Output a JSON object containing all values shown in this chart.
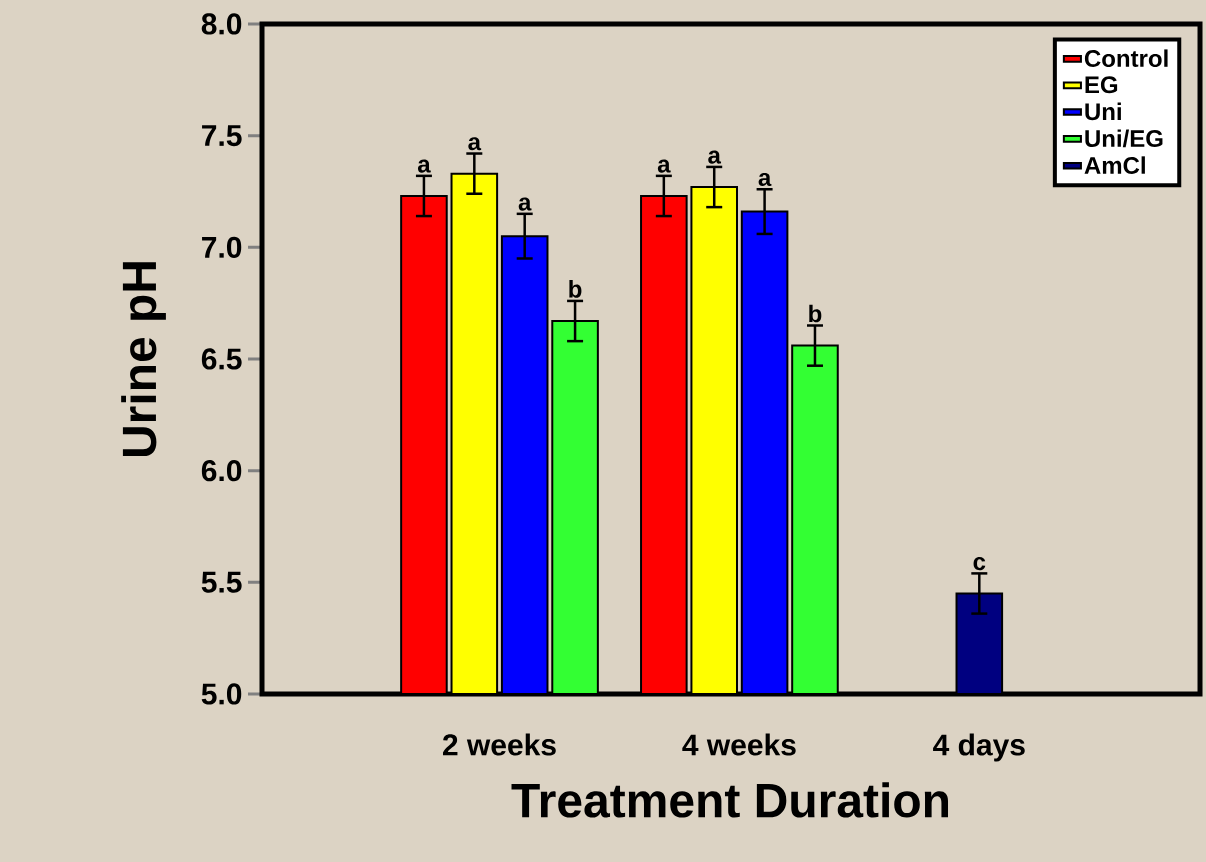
{
  "chart_data": {
    "type": "bar",
    "xlabel": "Treatment Duration",
    "ylabel": "Urine pH",
    "categories": [
      "2 weeks",
      "4 weeks",
      "4 days"
    ],
    "series": [
      {
        "name": "Control",
        "color": "#ff0000",
        "values": [
          7.23,
          7.23,
          null
        ],
        "errors": [
          0.09,
          0.09,
          null
        ],
        "value_labels": [
          "a",
          "a",
          null
        ]
      },
      {
        "name": "EG",
        "color": "#ffff00",
        "values": [
          7.33,
          7.27,
          null
        ],
        "errors": [
          0.09,
          0.09,
          null
        ],
        "value_labels": [
          "a",
          "a",
          null
        ]
      },
      {
        "name": "Uni",
        "color": "#0000ff",
        "values": [
          7.05,
          7.16,
          null
        ],
        "errors": [
          0.1,
          0.1,
          null
        ],
        "value_labels": [
          "a",
          "a",
          null
        ]
      },
      {
        "name": "Uni/EG",
        "color": "#33ff33",
        "values": [
          6.67,
          6.56,
          null
        ],
        "errors": [
          0.09,
          0.09,
          null
        ],
        "value_labels": [
          "b",
          "b",
          null
        ]
      },
      {
        "name": "AmCl",
        "color": "#000080",
        "values": [
          null,
          null,
          5.45
        ],
        "errors": [
          null,
          null,
          0.09
        ],
        "value_labels": [
          null,
          null,
          "c"
        ]
      }
    ],
    "ylim": [
      5,
      8
    ],
    "yticks": [
      {
        "value": 5,
        "label": "5.0"
      },
      {
        "value": 5.5,
        "label": "5.5"
      },
      {
        "value": 6,
        "label": "6.0"
      },
      {
        "value": 6.5,
        "label": "6.5"
      },
      {
        "value": 7,
        "label": "7.0"
      },
      {
        "value": 7.5,
        "label": "7.5"
      },
      {
        "value": 8,
        "label": "8.0"
      }
    ],
    "legend": "top right"
  }
}
